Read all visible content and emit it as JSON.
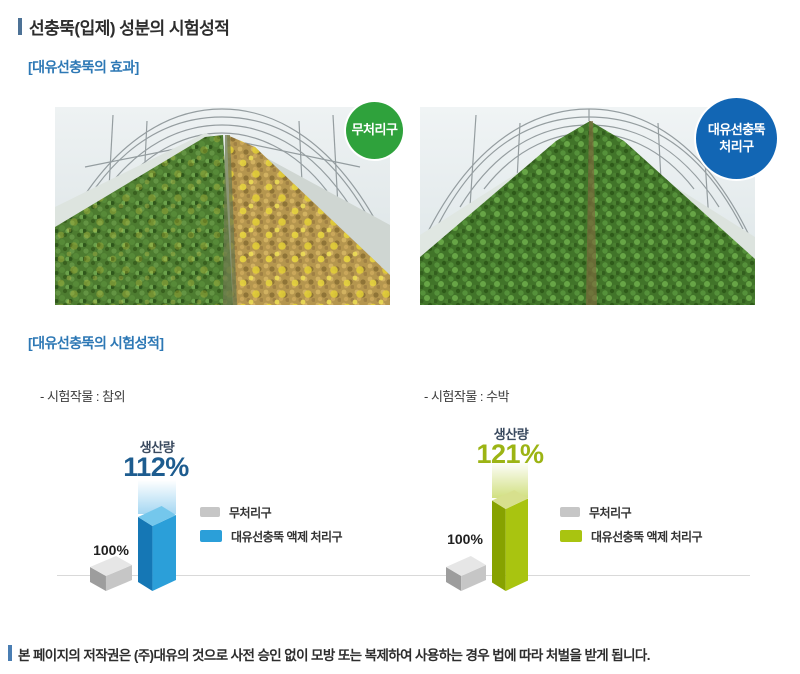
{
  "page": {
    "title": "선충뚝(입제) 성분의 시험성적",
    "copyright": "본 페이지의 저작권은 (주)대유의 것으로 사전 승인 없이 모방 또는 복제하여 사용하는 경우 법에 따라 처벌을 받게 됩니다."
  },
  "sections": {
    "effect_heading": "[대유선충뚝의 효과]",
    "results_heading": "[대유선충뚝의 시험성적]"
  },
  "photos": {
    "untreated": {
      "badge": "무처리구",
      "badge_color": "#2fa23c"
    },
    "treated": {
      "badge_line1": "대유선충뚝",
      "badge_line2": "처리구",
      "badge_color": "#1266b4"
    }
  },
  "chart_data": [
    {
      "type": "bar",
      "title": "- 시험작물 : 참외",
      "value_label": "생산량",
      "categories": [
        "무처리구",
        "대유선충뚝 액제 처리구"
      ],
      "values": [
        100,
        112
      ],
      "value_texts": [
        "100%",
        "112%"
      ],
      "colors": [
        "#c6c6c6",
        "#2b9fd9"
      ],
      "highlight_color": "#1d5c8f",
      "ylabel": "",
      "xlabel": "",
      "legend_position": "right",
      "grid": false
    },
    {
      "type": "bar",
      "title": "- 시험작물 : 수박",
      "value_label": "생산량",
      "categories": [
        "무처리구",
        "대유선충뚝 액제 처리구"
      ],
      "values": [
        100,
        121
      ],
      "value_texts": [
        "100%",
        "121%"
      ],
      "colors": [
        "#c6c6c6",
        "#a9c410"
      ],
      "highlight_color": "#9cb414",
      "ylabel": "",
      "xlabel": "",
      "legend_position": "right",
      "grid": false
    }
  ]
}
